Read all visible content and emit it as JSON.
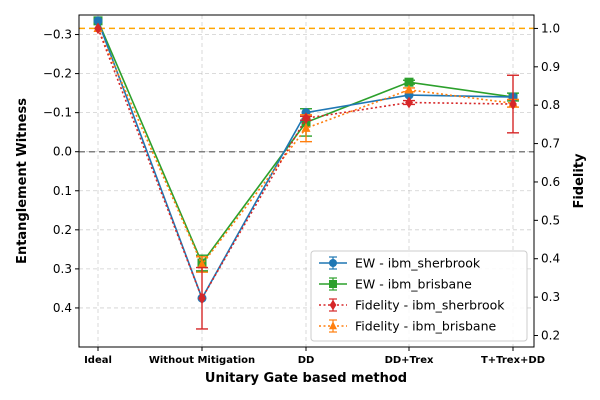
{
  "chart_data": {
    "type": "line",
    "categories": [
      "Ideal",
      "Without Mitigation",
      "DD",
      "DD+Trex",
      "T+Trex+DD"
    ],
    "xlabel": "Unitary Gate based method",
    "ylabel_left": "Entanglement Witness",
    "ylabel_right": "Fidelity",
    "left_axis": {
      "inverted": true,
      "ylim": [
        0.5,
        -0.35
      ],
      "ticks": [
        -0.3,
        -0.2,
        -0.1,
        0.0,
        0.1,
        0.2,
        0.3,
        0.4
      ],
      "tick_labels": [
        "−0.3",
        "−0.2",
        "−0.1",
        "0.0",
        "0.1",
        "0.2",
        "0.3",
        "0.4"
      ]
    },
    "right_axis": {
      "ylim": [
        0.17,
        1.035
      ],
      "ticks": [
        0.2,
        0.3,
        0.4,
        0.5,
        0.6,
        0.7,
        0.8,
        0.9,
        1.0
      ],
      "tick_labels": [
        "0.2",
        "0.3",
        "0.4",
        "0.5",
        "0.6",
        "0.7",
        "0.8",
        "0.9",
        "1.0"
      ]
    },
    "reference_lines": [
      {
        "axis": "left",
        "value": 0.0,
        "color": "#808080",
        "style": "dashed"
      },
      {
        "axis": "right",
        "value": 1.0,
        "color": "#ffa500",
        "style": "dashed"
      }
    ],
    "grid": true,
    "legend_position": "bottom-right",
    "series": [
      {
        "name": "EW - ibm_sherbrook",
        "axis": "left",
        "color": "#1f77b4",
        "marker": "circle",
        "line": "solid",
        "values": [
          -0.335,
          0.375,
          -0.1,
          -0.145,
          -0.14
        ],
        "errors": [
          0.0,
          0.0,
          0.0,
          0.0,
          0.0
        ]
      },
      {
        "name": "EW - ibm_brisbane",
        "axis": "left",
        "color": "#2ca02c",
        "marker": "square",
        "line": "solid",
        "values": [
          -0.335,
          0.285,
          -0.075,
          -0.178,
          -0.14
        ],
        "errors": [
          0.0,
          0.02,
          0.035,
          0.005,
          0.01
        ]
      },
      {
        "name": "Fidelity - ibm_sherbrook",
        "axis": "right",
        "color": "#d62728",
        "marker": "diamond",
        "line": "dotted",
        "values": [
          1.0,
          0.297,
          0.766,
          0.807,
          0.803
        ],
        "errors": [
          0.0,
          0.08,
          0.005,
          0.005,
          0.075
        ]
      },
      {
        "name": "Fidelity - ibm_brisbane",
        "axis": "right",
        "color": "#ff7f0e",
        "marker": "triangle",
        "line": "dotted",
        "values": [
          1.0,
          0.385,
          0.74,
          0.84,
          0.805
        ],
        "errors": [
          0.0,
          0.02,
          0.035,
          0.005,
          0.01
        ]
      }
    ]
  }
}
